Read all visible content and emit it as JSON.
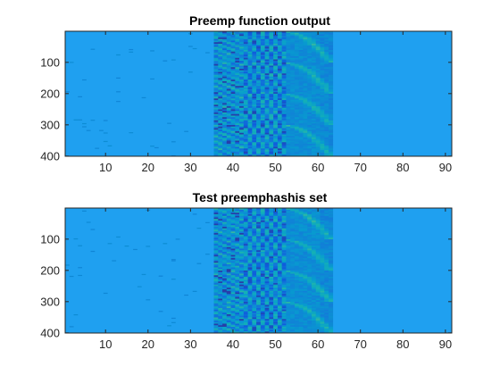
{
  "chart_data": [
    {
      "type": "heatmap",
      "title": "Preemp function output",
      "xlabel": "",
      "ylabel": "",
      "xlim": [
        0.5,
        91.5
      ],
      "ylim": [
        0.5,
        400.5
      ],
      "y_reversed": true,
      "x_ticks": [
        10,
        20,
        30,
        40,
        50,
        60,
        70,
        80,
        90
      ],
      "y_ticks": [
        100,
        200,
        300,
        400
      ],
      "grid": false,
      "colormap": "parula",
      "background_color": "#1fa0f0",
      "active_columns": [
        36,
        63
      ]
    },
    {
      "type": "heatmap",
      "title": "Test preemphashis set",
      "xlabel": "",
      "ylabel": "",
      "xlim": [
        0.5,
        91.5
      ],
      "ylim": [
        0.5,
        400.5
      ],
      "y_reversed": true,
      "x_ticks": [
        10,
        20,
        30,
        40,
        50,
        60,
        70,
        80,
        90
      ],
      "y_ticks": [
        100,
        200,
        300,
        400
      ],
      "grid": false,
      "colormap": "parula",
      "background_color": "#1fa0f0",
      "active_columns": [
        36,
        63
      ]
    }
  ]
}
